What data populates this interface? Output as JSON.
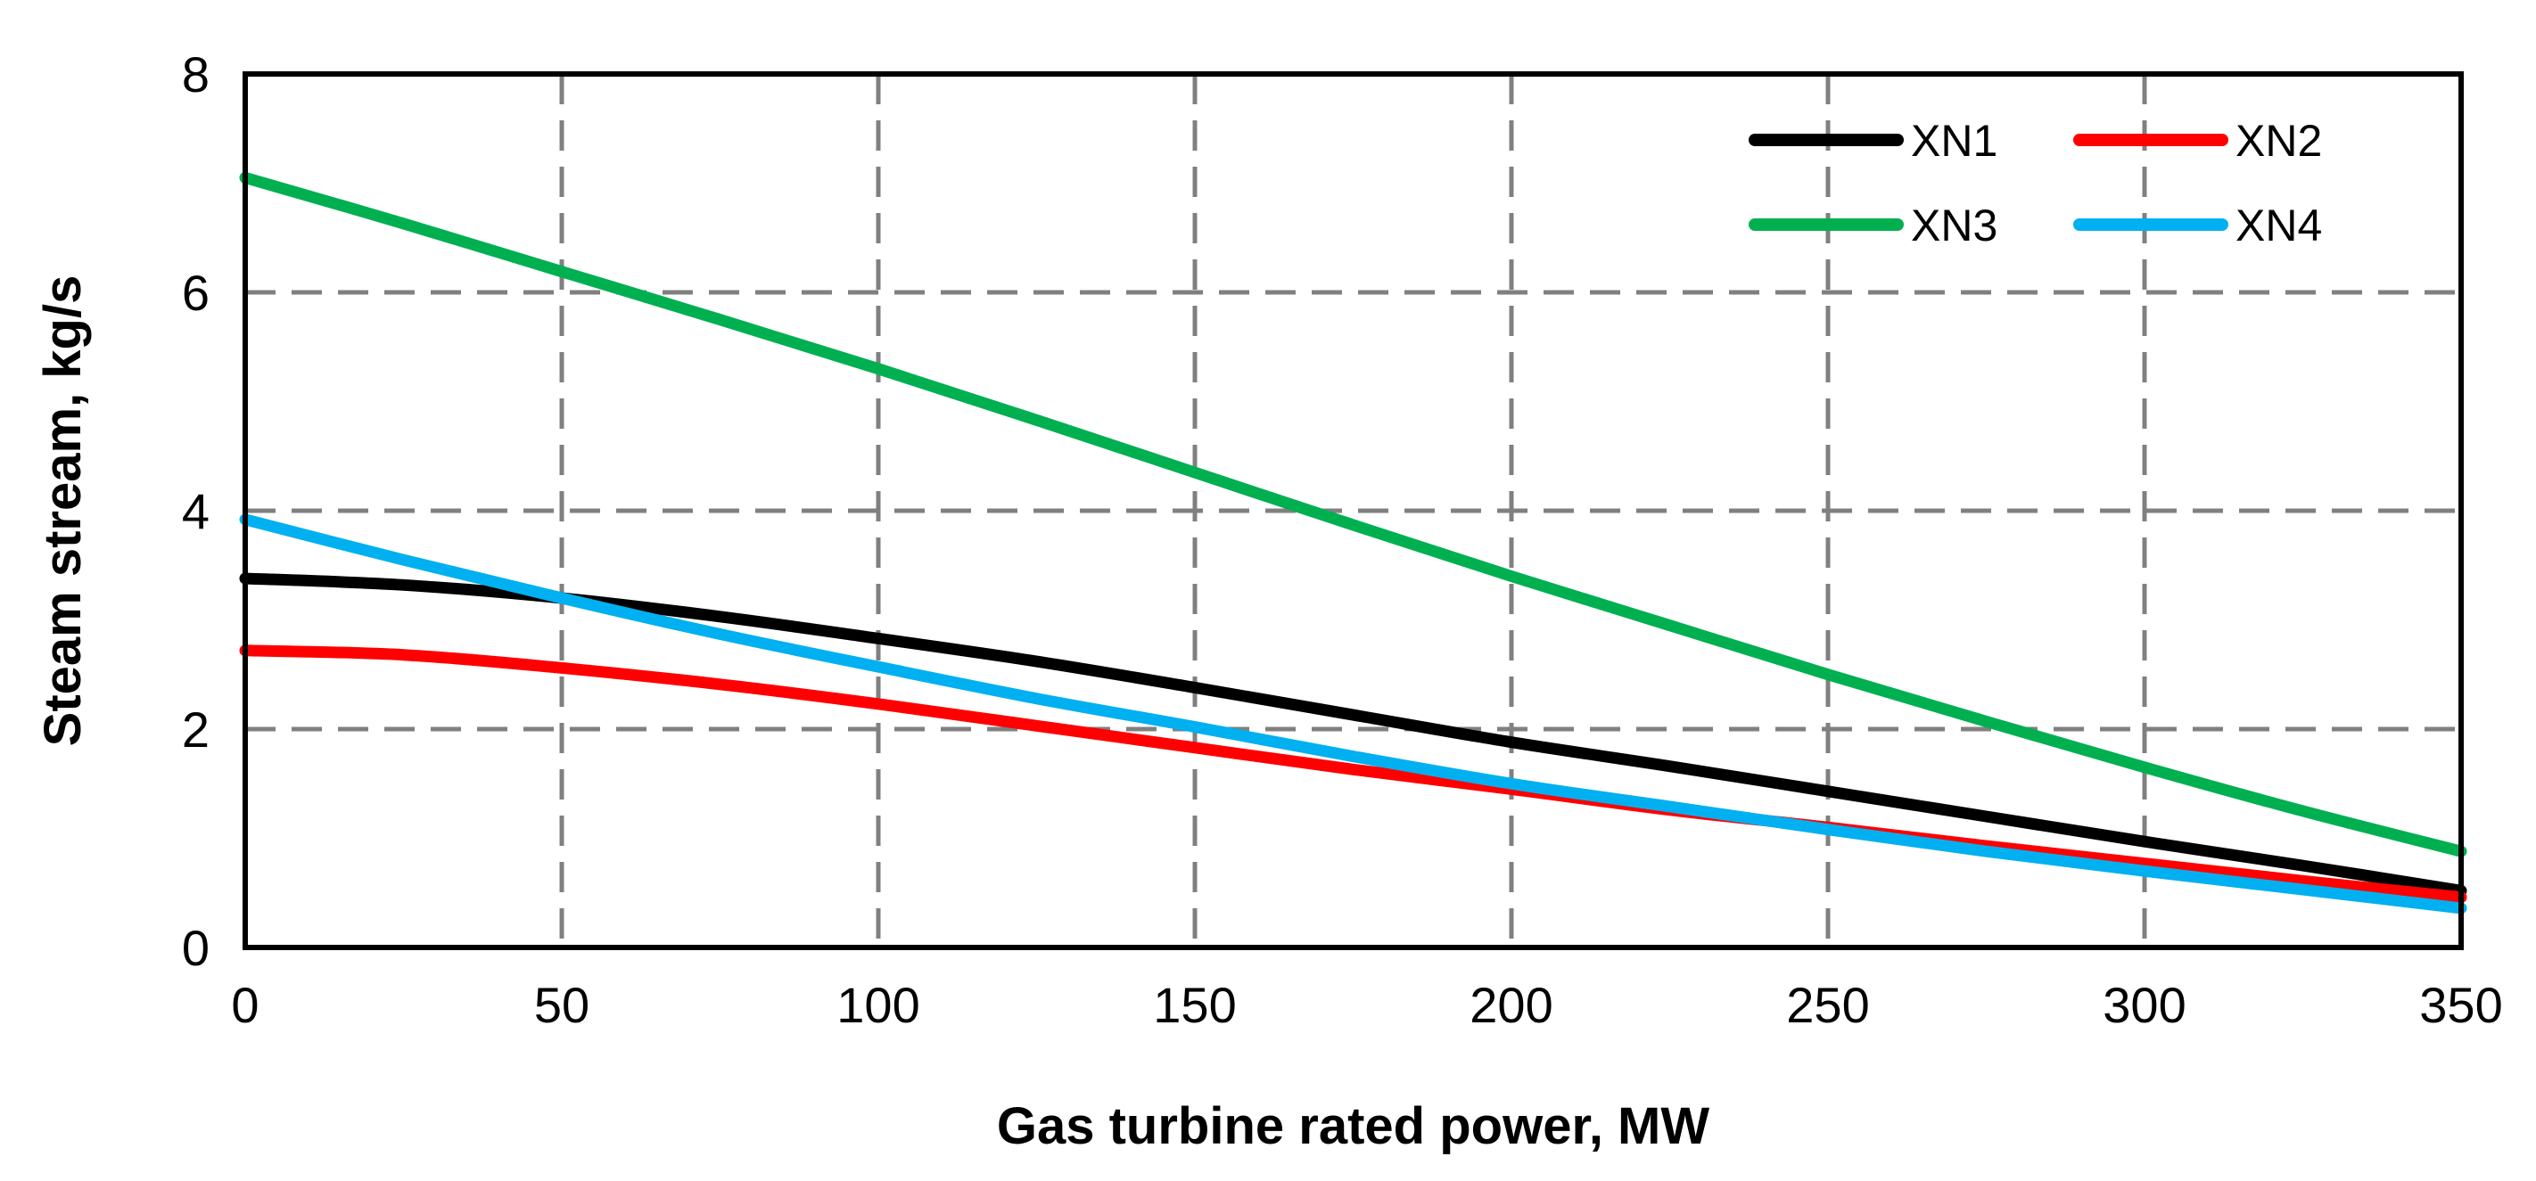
{
  "chart_data": {
    "type": "line",
    "title": "",
    "xlabel": "Gas turbine rated power, MW",
    "ylabel": "Steam stream, kg/s",
    "xlim": [
      0,
      350
    ],
    "ylim": [
      0,
      8
    ],
    "xticks": [
      0,
      50,
      100,
      150,
      200,
      250,
      300,
      350
    ],
    "yticks": [
      0,
      2,
      4,
      6,
      8
    ],
    "xtick_labels": [
      "0",
      "50",
      "100",
      "150",
      "200",
      "250",
      "300",
      "350"
    ],
    "ytick_labels": [
      "0",
      "2",
      "4",
      "6",
      "8"
    ],
    "grid": "dashed",
    "legend_position": "top-right",
    "x": [
      0,
      25,
      50,
      75,
      100,
      125,
      150,
      175,
      200,
      225,
      250,
      275,
      300,
      325,
      350
    ],
    "series": [
      {
        "name": "XN1",
        "color": "#000000",
        "values": [
          3.38,
          3.32,
          3.2,
          3.03,
          2.83,
          2.62,
          2.38,
          2.13,
          1.88,
          1.66,
          1.43,
          1.2,
          0.97,
          0.75,
          0.52
        ]
      },
      {
        "name": "XN2",
        "color": "#ff0000",
        "values": [
          2.72,
          2.68,
          2.56,
          2.41,
          2.23,
          2.03,
          1.83,
          1.63,
          1.45,
          1.26,
          1.1,
          0.93,
          0.77,
          0.61,
          0.46
        ]
      },
      {
        "name": "XN3",
        "color": "#00b050",
        "values": [
          7.05,
          6.63,
          6.19,
          5.75,
          5.3,
          4.83,
          4.35,
          3.87,
          3.4,
          2.95,
          2.5,
          2.07,
          1.65,
          1.25,
          0.88
        ]
      },
      {
        "name": "XN4",
        "color": "#00b0f0",
        "values": [
          3.92,
          3.55,
          3.2,
          2.87,
          2.57,
          2.28,
          2.02,
          1.75,
          1.5,
          1.29,
          1.08,
          0.88,
          0.7,
          0.53,
          0.36
        ]
      }
    ]
  }
}
